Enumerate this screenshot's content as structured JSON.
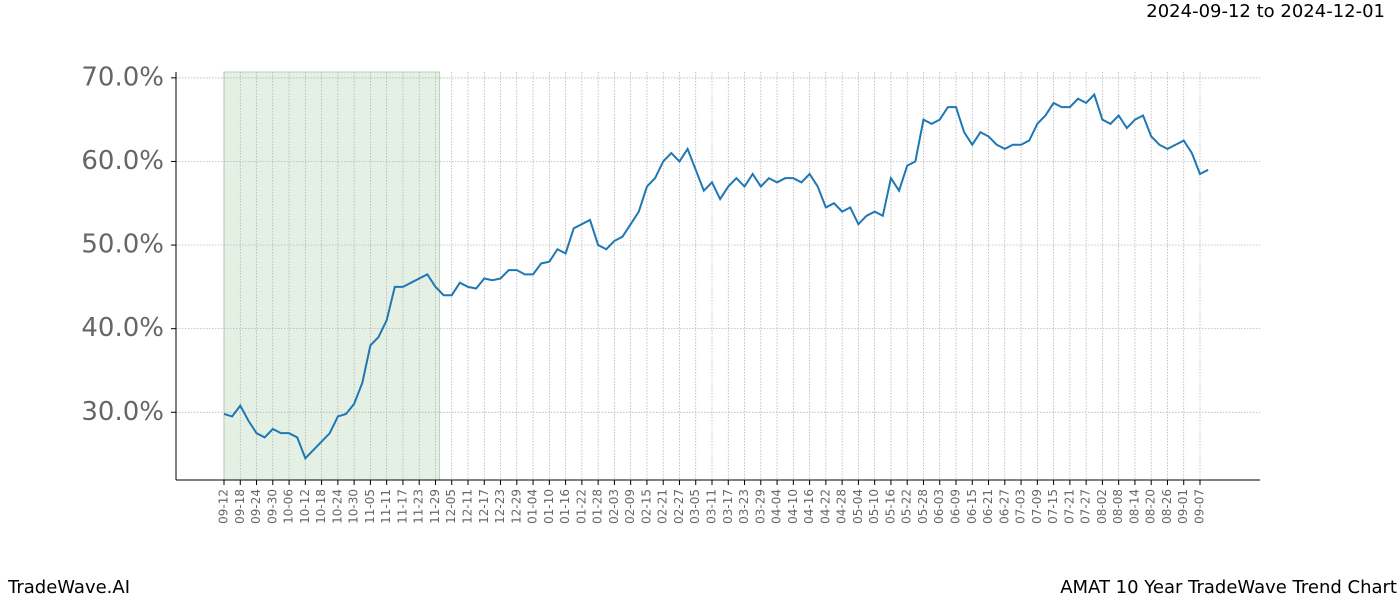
{
  "chart_data": {
    "type": "line",
    "title": "2024-09-12 to 2024-12-01",
    "footer_left": "TradeWave.AI",
    "footer_right": "AMAT 10 Year TradeWave Trend Chart",
    "categories": [
      "09-12",
      null,
      "09-18",
      null,
      "09-24",
      null,
      "09-30",
      null,
      "10-06",
      null,
      "10-12",
      null,
      "10-18",
      null,
      "10-24",
      null,
      "10-30",
      null,
      "11-05",
      null,
      "11-11",
      null,
      "11-17",
      null,
      "11-23",
      null,
      "11-29",
      null,
      "12-05",
      null,
      "12-11",
      null,
      "12-17",
      null,
      "12-23",
      null,
      "12-29",
      null,
      "01-04",
      null,
      "01-10",
      null,
      "01-16",
      null,
      "01-22",
      null,
      "01-28",
      null,
      "02-03",
      null,
      "02-09",
      null,
      "02-15",
      null,
      "02-21",
      null,
      "02-27",
      null,
      "03-05",
      null,
      "03-11",
      null,
      "03-17",
      null,
      "03-23",
      null,
      "03-29",
      null,
      "04-04",
      null,
      "04-10",
      null,
      "04-16",
      null,
      "04-22",
      null,
      "04-28",
      null,
      "05-04",
      null,
      "05-10",
      null,
      "05-16",
      null,
      "05-22",
      null,
      "05-28",
      null,
      "06-03",
      null,
      "06-09",
      null,
      "06-15",
      null,
      "06-21",
      null,
      "06-27",
      null,
      "07-03",
      null,
      "07-09",
      null,
      "07-15",
      null,
      "07-21",
      null,
      "07-27",
      null,
      "08-02",
      null,
      "08-08",
      null,
      "08-14",
      null,
      "08-20",
      null,
      "08-26",
      null,
      "09-01",
      null,
      "09-07",
      null
    ],
    "series": [
      {
        "name": "AMAT",
        "color": "#1f77b4",
        "values": [
          29.8,
          29.5,
          30.8,
          29,
          27.5,
          27,
          28,
          27.5,
          27.5,
          27,
          24.5,
          25.5,
          26.5,
          27.5,
          29.5,
          29.8,
          31,
          33.5,
          38,
          39,
          41,
          45,
          45,
          45.5,
          46,
          46.5,
          45,
          44,
          44,
          45.5,
          45,
          44.8,
          46,
          45.8,
          46,
          47,
          47,
          46.5,
          46.5,
          47.8,
          48,
          49.5,
          49,
          52,
          52.5,
          53,
          50,
          49.5,
          50.5,
          51,
          52.5,
          54,
          57,
          58,
          60,
          61,
          60,
          61.5,
          59,
          56.5,
          57.5,
          55.5,
          57,
          58,
          57,
          58.5,
          57,
          58,
          57.5,
          58,
          58,
          57.5,
          58.5,
          57,
          54.5,
          55,
          54,
          54.5,
          52.5,
          53.5,
          54,
          53.5,
          58,
          56.5,
          59.5,
          60,
          65,
          64.5,
          65,
          66.5,
          66.5,
          63.5,
          62,
          63.5,
          63,
          62,
          61.5,
          62,
          62,
          62.5,
          64.5,
          65.5,
          67,
          66.5,
          66.5,
          67.5,
          67,
          68,
          65,
          64.5,
          65.5,
          64,
          65,
          65.5,
          63,
          62,
          61.5,
          62,
          62.5,
          61,
          58.5,
          59
        ]
      }
    ],
    "highlight": [
      0,
      26.5
    ],
    "highlight_color": "#e5f0e5",
    "ylim": [
      21.9,
      70.7
    ],
    "yticks": [
      {
        "value": 30,
        "label": "30.0%"
      },
      {
        "value": 40,
        "label": "40.0%"
      },
      {
        "value": 50,
        "label": "50.0%"
      },
      {
        "value": 60,
        "label": "60.0%"
      },
      {
        "value": 70,
        "label": "70.0%"
      }
    ],
    "grid": true
  }
}
